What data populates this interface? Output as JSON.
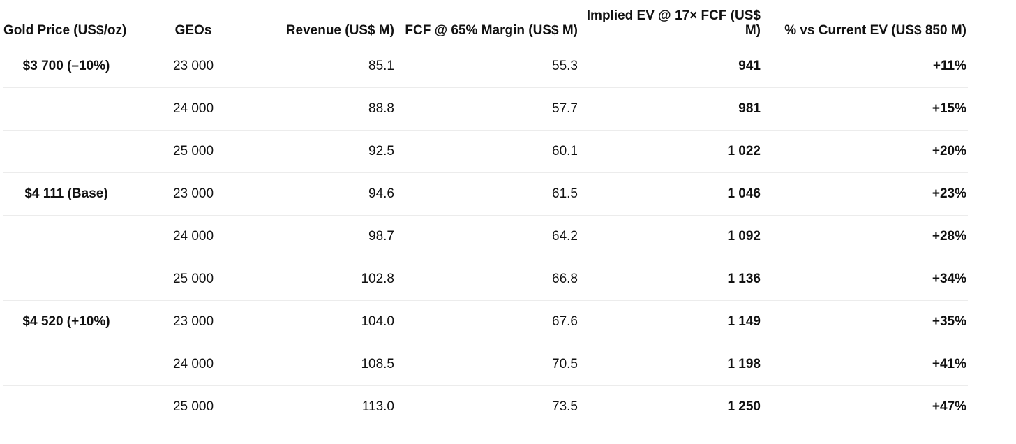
{
  "headers": [
    "Gold Price (US$/oz)",
    "GEOs",
    "Revenue (US$ M)",
    "FCF @ 65% Margin (US$ M)",
    "Implied EV @ 17× FCF (US$ M)",
    "% vs Current EV (US$ 850 M)"
  ],
  "rows": [
    {
      "gold": "$3 700 (–10%)",
      "geos": "23 000",
      "revenue": "85.1",
      "fcf": "55.3",
      "ev": "941",
      "pct": "+11%"
    },
    {
      "gold": "",
      "geos": "24 000",
      "revenue": "88.8",
      "fcf": "57.7",
      "ev": "981",
      "pct": "+15%"
    },
    {
      "gold": "",
      "geos": "25 000",
      "revenue": "92.5",
      "fcf": "60.1",
      "ev": "1 022",
      "pct": "+20%"
    },
    {
      "gold": "$4 111 (Base)",
      "geos": "23 000",
      "revenue": "94.6",
      "fcf": "61.5",
      "ev": "1 046",
      "pct": "+23%"
    },
    {
      "gold": "",
      "geos": "24 000",
      "revenue": "98.7",
      "fcf": "64.2",
      "ev": "1 092",
      "pct": "+28%"
    },
    {
      "gold": "",
      "geos": "25 000",
      "revenue": "102.8",
      "fcf": "66.8",
      "ev": "1 136",
      "pct": "+34%"
    },
    {
      "gold": "$4 520 (+10%)",
      "geos": "23 000",
      "revenue": "104.0",
      "fcf": "67.6",
      "ev": "1 149",
      "pct": "+35%"
    },
    {
      "gold": "",
      "geos": "24 000",
      "revenue": "108.5",
      "fcf": "70.5",
      "ev": "1 198",
      "pct": "+41%"
    },
    {
      "gold": "",
      "geos": "25 000",
      "revenue": "113.0",
      "fcf": "73.5",
      "ev": "1 250",
      "pct": "+47%"
    }
  ]
}
